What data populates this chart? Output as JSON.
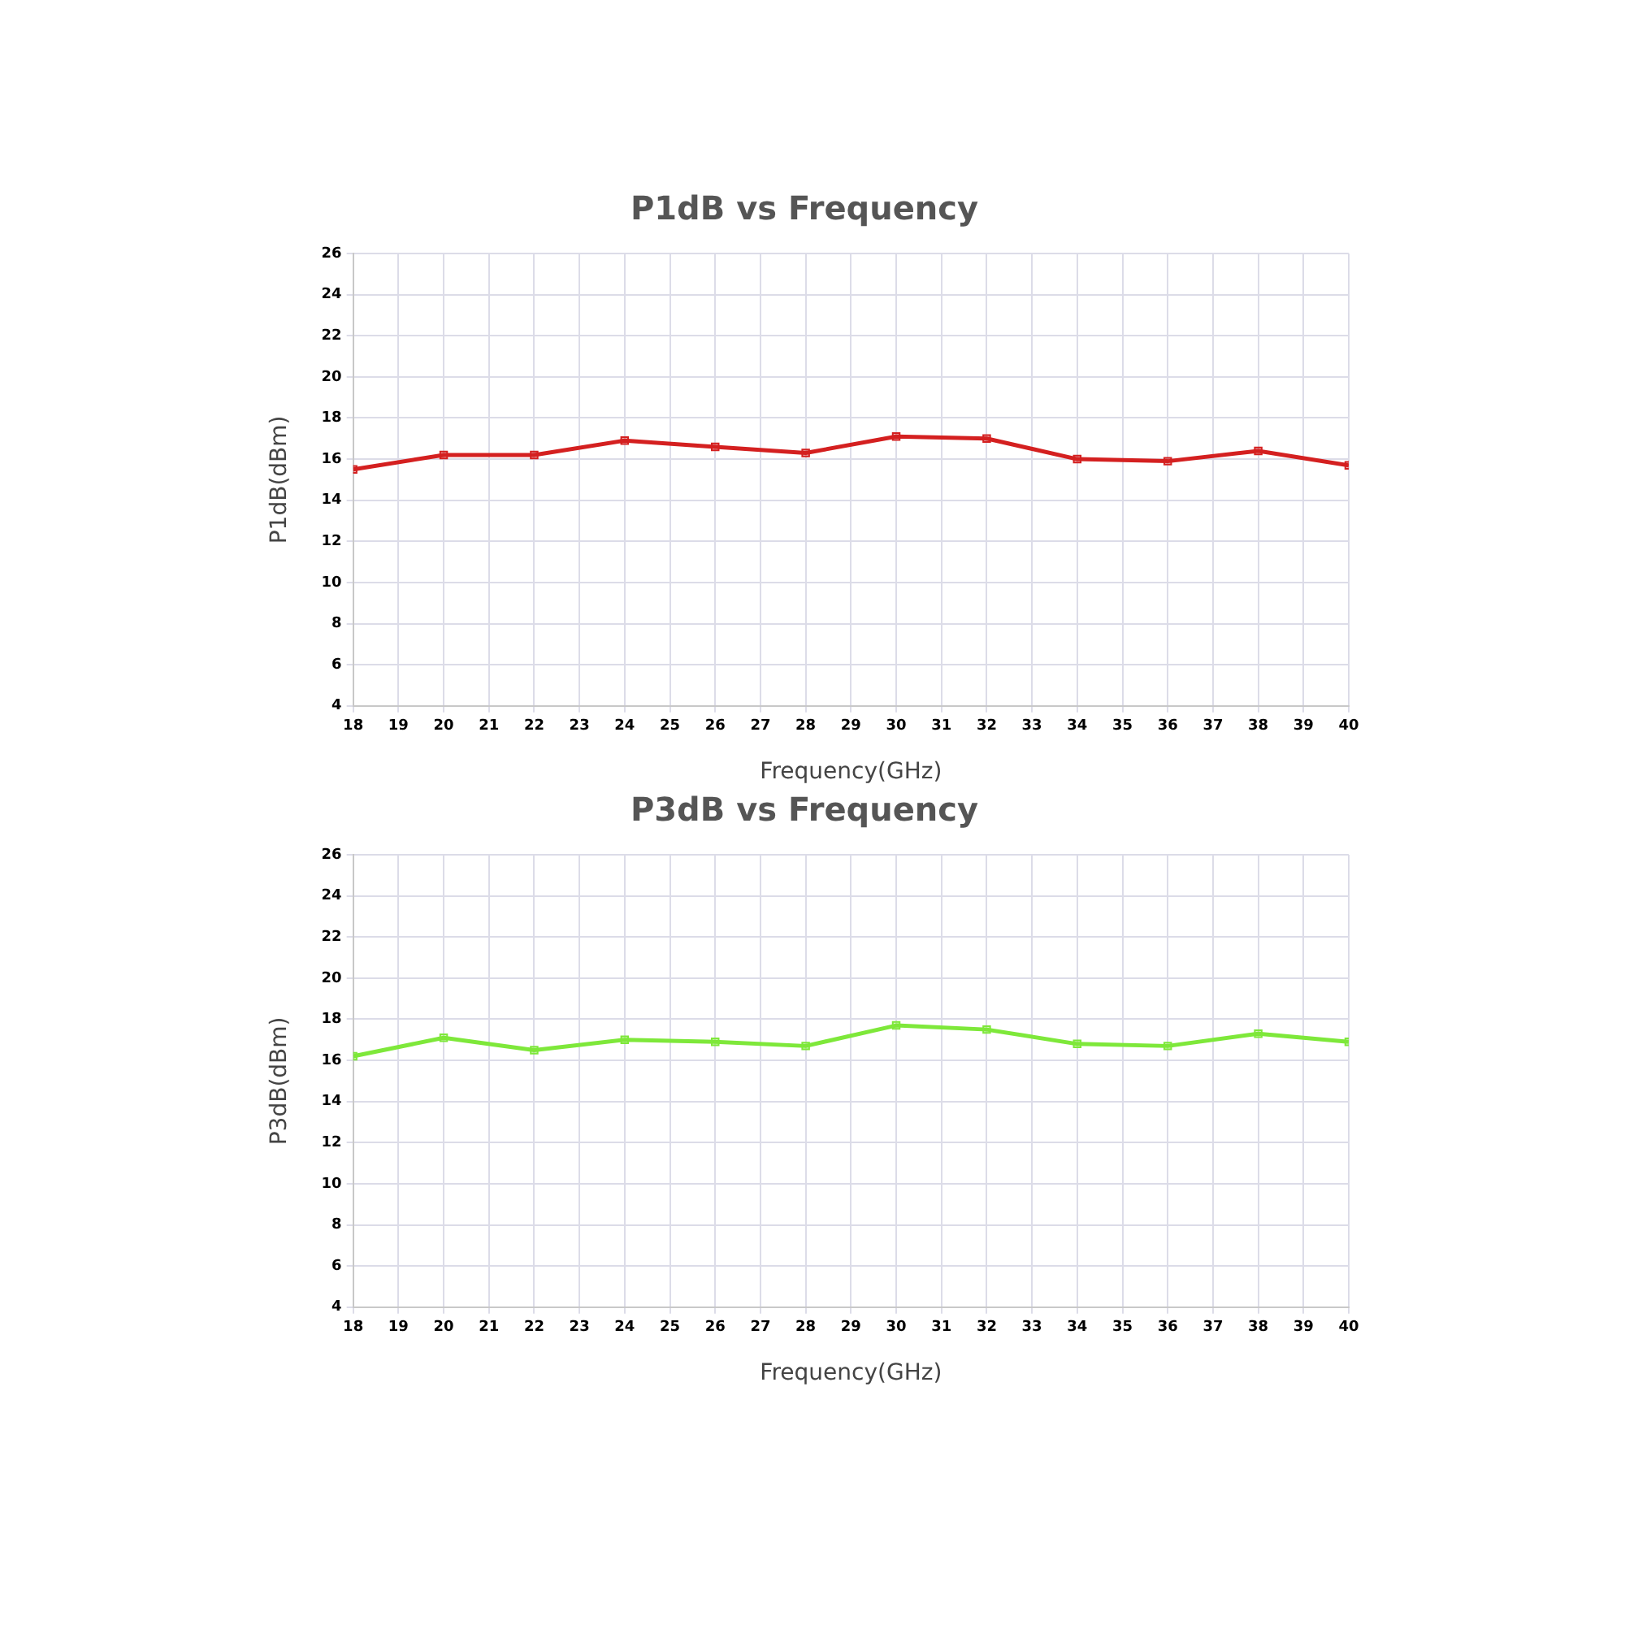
{
  "chart_data": [
    {
      "type": "line",
      "title": "P1dB vs Frequency",
      "xlabel": "Frequency(GHz)",
      "ylabel": "P1dB(dBm)",
      "x": [
        18,
        20,
        22,
        24,
        26,
        28,
        30,
        32,
        34,
        36,
        38,
        40
      ],
      "series": [
        {
          "color": "#d42020",
          "values": [
            15.5,
            16.2,
            16.2,
            16.9,
            16.6,
            16.3,
            17.1,
            17.0,
            16.0,
            15.9,
            16.4,
            15.7
          ]
        }
      ],
      "xlim": [
        18,
        40
      ],
      "xticks": [
        18,
        19,
        20,
        21,
        22,
        23,
        24,
        25,
        26,
        27,
        28,
        29,
        30,
        31,
        32,
        33,
        34,
        35,
        36,
        37,
        38,
        39,
        40
      ],
      "ylim": [
        4,
        26
      ],
      "yticks": [
        4,
        6,
        8,
        10,
        12,
        14,
        16,
        18,
        20,
        22,
        24,
        26
      ],
      "grid": true,
      "marker": "square",
      "line_style": "solid"
    },
    {
      "type": "line",
      "title": "P3dB vs Frequency",
      "xlabel": "Frequency(GHz)",
      "ylabel": "P3dB(dBm)",
      "x": [
        18,
        20,
        22,
        24,
        26,
        28,
        30,
        32,
        34,
        36,
        38,
        40
      ],
      "series": [
        {
          "color": "#7ee83a",
          "values": [
            16.2,
            17.1,
            16.5,
            17.0,
            16.9,
            16.7,
            17.7,
            17.5,
            16.8,
            16.7,
            17.3,
            16.9
          ]
        }
      ],
      "xlim": [
        18,
        40
      ],
      "xticks": [
        18,
        19,
        20,
        21,
        22,
        23,
        24,
        25,
        26,
        27,
        28,
        29,
        30,
        31,
        32,
        33,
        34,
        35,
        36,
        37,
        38,
        39,
        40
      ],
      "ylim": [
        4,
        26
      ],
      "yticks": [
        4,
        6,
        8,
        10,
        12,
        14,
        16,
        18,
        20,
        22,
        24,
        26
      ],
      "grid": true,
      "marker": "square",
      "line_style": "solid"
    }
  ]
}
